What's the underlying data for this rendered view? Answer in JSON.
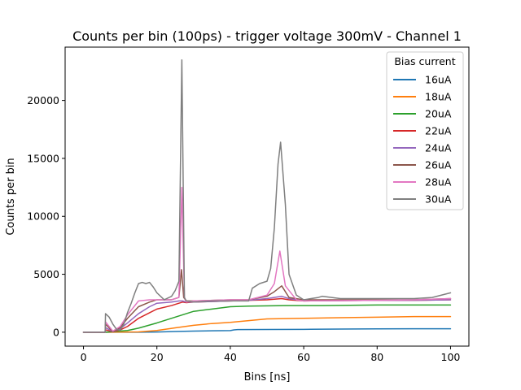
{
  "chart_data": {
    "type": "line",
    "title": "Counts per bin (100ps) - trigger voltage 300mV - Channel 1",
    "xlabel": "Bins [ns]",
    "ylabel": "Counts per bin",
    "xlim": [
      -5,
      105
    ],
    "ylim": [
      -1200,
      24600
    ],
    "xticks": [
      0,
      20,
      40,
      60,
      80,
      100
    ],
    "yticks": [
      0,
      5000,
      10000,
      15000,
      20000
    ],
    "grid": false,
    "legend": {
      "title": "Bias current",
      "placement": "top-right"
    },
    "series": [
      {
        "name": "16uA",
        "color": "#1f77b4",
        "points": [
          [
            0,
            0
          ],
          [
            5.9,
            0
          ],
          [
            6,
            0
          ],
          [
            15,
            0
          ],
          [
            20,
            20
          ],
          [
            25,
            60
          ],
          [
            30,
            100
          ],
          [
            35,
            120
          ],
          [
            40,
            140
          ],
          [
            41,
            200
          ],
          [
            42,
            230
          ],
          [
            50,
            240
          ],
          [
            60,
            250
          ],
          [
            70,
            270
          ],
          [
            80,
            290
          ],
          [
            90,
            300
          ],
          [
            100,
            300
          ]
        ]
      },
      {
        "name": "18uA",
        "color": "#ff7f0e",
        "points": [
          [
            0,
            0
          ],
          [
            5.9,
            0
          ],
          [
            6,
            0
          ],
          [
            15,
            30
          ],
          [
            20,
            150
          ],
          [
            25,
            380
          ],
          [
            30,
            600
          ],
          [
            35,
            750
          ],
          [
            40,
            850
          ],
          [
            45,
            1000
          ],
          [
            50,
            1150
          ],
          [
            60,
            1200
          ],
          [
            70,
            1250
          ],
          [
            80,
            1300
          ],
          [
            90,
            1350
          ],
          [
            100,
            1350
          ]
        ]
      },
      {
        "name": "20uA",
        "color": "#2ca02c",
        "points": [
          [
            0,
            0
          ],
          [
            5.9,
            0
          ],
          [
            6,
            0
          ],
          [
            12,
            150
          ],
          [
            15,
            350
          ],
          [
            20,
            800
          ],
          [
            25,
            1300
          ],
          [
            30,
            1800
          ],
          [
            35,
            2000
          ],
          [
            40,
            2200
          ],
          [
            45,
            2250
          ],
          [
            55,
            2300
          ],
          [
            65,
            2300
          ],
          [
            80,
            2350
          ],
          [
            90,
            2350
          ],
          [
            100,
            2350
          ]
        ]
      },
      {
        "name": "22uA",
        "color": "#d62728",
        "points": [
          [
            0,
            0
          ],
          [
            5.9,
            0
          ],
          [
            6,
            200
          ],
          [
            8,
            50
          ],
          [
            10,
            200
          ],
          [
            12,
            500
          ],
          [
            15,
            1200
          ],
          [
            20,
            2000
          ],
          [
            24,
            2300
          ],
          [
            26,
            2500
          ],
          [
            27,
            2600
          ],
          [
            28,
            2550
          ],
          [
            30,
            2600
          ],
          [
            40,
            2700
          ],
          [
            45,
            2750
          ],
          [
            50,
            2800
          ],
          [
            54,
            2900
          ],
          [
            56,
            2800
          ],
          [
            60,
            2700
          ],
          [
            80,
            2750
          ],
          [
            90,
            2750
          ],
          [
            100,
            2800
          ]
        ]
      },
      {
        "name": "24uA",
        "color": "#9467bd",
        "points": [
          [
            0,
            0
          ],
          [
            5.9,
            0
          ],
          [
            6,
            400
          ],
          [
            8,
            50
          ],
          [
            10,
            300
          ],
          [
            12,
            800
          ],
          [
            15,
            1600
          ],
          [
            18,
            2200
          ],
          [
            20,
            2500
          ],
          [
            24,
            2600
          ],
          [
            26,
            2700
          ],
          [
            27,
            2700
          ],
          [
            28,
            2600
          ],
          [
            30,
            2600
          ],
          [
            40,
            2700
          ],
          [
            45,
            2750
          ],
          [
            50,
            2900
          ],
          [
            54,
            3100
          ],
          [
            56,
            2900
          ],
          [
            60,
            2700
          ],
          [
            80,
            2750
          ],
          [
            90,
            2750
          ],
          [
            100,
            2800
          ]
        ]
      },
      {
        "name": "26uA",
        "color": "#8c564b",
        "points": [
          [
            0,
            0
          ],
          [
            5.9,
            0
          ],
          [
            6,
            700
          ],
          [
            8,
            50
          ],
          [
            10,
            400
          ],
          [
            12,
            1200
          ],
          [
            15,
            2200
          ],
          [
            18,
            2600
          ],
          [
            20,
            2800
          ],
          [
            24,
            2800
          ],
          [
            26,
            3000
          ],
          [
            26.7,
            5400
          ],
          [
            27.3,
            3000
          ],
          [
            28,
            2700
          ],
          [
            30,
            2700
          ],
          [
            40,
            2800
          ],
          [
            45,
            2800
          ],
          [
            50,
            3100
          ],
          [
            52,
            3500
          ],
          [
            54,
            4000
          ],
          [
            56,
            3000
          ],
          [
            60,
            2800
          ],
          [
            80,
            2800
          ],
          [
            90,
            2800
          ],
          [
            100,
            2900
          ]
        ]
      },
      {
        "name": "28uA",
        "color": "#e377c2",
        "points": [
          [
            0,
            0
          ],
          [
            5.9,
            0
          ],
          [
            6,
            900
          ],
          [
            8,
            100
          ],
          [
            10,
            500
          ],
          [
            12,
            1500
          ],
          [
            15,
            2700
          ],
          [
            18,
            2800
          ],
          [
            20,
            2800
          ],
          [
            24,
            2800
          ],
          [
            26,
            3000
          ],
          [
            26.8,
            12500
          ],
          [
            27.5,
            3000
          ],
          [
            28,
            2600
          ],
          [
            30,
            2700
          ],
          [
            40,
            2800
          ],
          [
            45,
            2800
          ],
          [
            50,
            3200
          ],
          [
            52,
            4200
          ],
          [
            53.5,
            7000
          ],
          [
            55,
            4000
          ],
          [
            58,
            2800
          ],
          [
            60,
            2700
          ],
          [
            80,
            2750
          ],
          [
            90,
            2800
          ],
          [
            100,
            2900
          ]
        ]
      },
      {
        "name": "30uA",
        "color": "#7f7f7f",
        "points": [
          [
            0,
            0
          ],
          [
            5.9,
            0
          ],
          [
            6,
            1600
          ],
          [
            7,
            1300
          ],
          [
            8,
            700
          ],
          [
            9,
            250
          ],
          [
            10,
            150
          ],
          [
            11,
            700
          ],
          [
            12,
            1700
          ],
          [
            13,
            2500
          ],
          [
            14,
            3400
          ],
          [
            15,
            4200
          ],
          [
            16,
            4300
          ],
          [
            17,
            4200
          ],
          [
            18,
            4300
          ],
          [
            19,
            3900
          ],
          [
            20,
            3400
          ],
          [
            22,
            2800
          ],
          [
            24,
            3100
          ],
          [
            25,
            3600
          ],
          [
            26,
            4400
          ],
          [
            26.8,
            23500
          ],
          [
            27.5,
            3000
          ],
          [
            28,
            2700
          ],
          [
            30,
            2600
          ],
          [
            35,
            2700
          ],
          [
            40,
            2700
          ],
          [
            45,
            2700
          ],
          [
            46,
            3800
          ],
          [
            48,
            4200
          ],
          [
            50,
            4400
          ],
          [
            51,
            5500
          ],
          [
            52,
            9000
          ],
          [
            53,
            14500
          ],
          [
            53.7,
            16400
          ],
          [
            55,
            11000
          ],
          [
            56,
            5000
          ],
          [
            58,
            3200
          ],
          [
            60,
            2800
          ],
          [
            64,
            3000
          ],
          [
            65,
            3100
          ],
          [
            70,
            2900
          ],
          [
            80,
            2900
          ],
          [
            90,
            2900
          ],
          [
            95,
            3000
          ],
          [
            100,
            3400
          ]
        ]
      }
    ]
  }
}
